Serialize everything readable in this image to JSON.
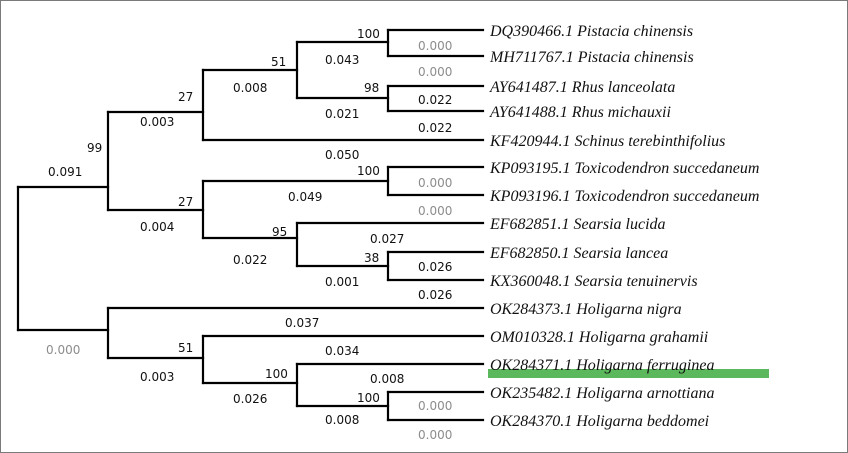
{
  "colors": {
    "line": "#000000",
    "text": "#111111",
    "zero_branch": "#8c8c8c",
    "highlight": "#5cb85c",
    "border": "#7a7a7a"
  },
  "taxa": [
    {
      "accession": "DQ390466.1",
      "species": "Pistacia chinensis"
    },
    {
      "accession": "MH711767.1",
      "species": "Pistacia chinensis"
    },
    {
      "accession": "AY641487.1",
      "species": "Rhus lanceolata"
    },
    {
      "accession": "AY641488.1",
      "species": "Rhus michauxii"
    },
    {
      "accession": "KF420944.1",
      "species": "Schinus terebinthifolius"
    },
    {
      "accession": "KP093195.1",
      "species": "Toxicodendron succedaneum"
    },
    {
      "accession": "KP093196.1",
      "species": "Toxicodendron succedaneum"
    },
    {
      "accession": "EF682851.1",
      "species": "Searsia lucida"
    },
    {
      "accession": "EF682850.1",
      "species": "Searsia lancea"
    },
    {
      "accession": "KX360048.1",
      "species": "Searsia tenuinervis"
    },
    {
      "accession": "OK284373.1",
      "species": "Holigarna nigra"
    },
    {
      "accession": "OM010328.1",
      "species": "Holigarna grahamii"
    },
    {
      "accession": "OK284371.1",
      "species": "Holigarna ferruginea"
    },
    {
      "accession": "OK235482.1",
      "species": "Holigarna arnottiana"
    },
    {
      "accession": "OK284370.1",
      "species": "Holigarna beddomei"
    }
  ],
  "highlighted_taxon": "OK284371.1",
  "bootstrap": {
    "pistacia": "100",
    "pist_rhus": "51",
    "rhus": "98",
    "clade_27a": "27",
    "clade_99": "99",
    "toxico": "100",
    "clade_27b": "27",
    "searsia_95": "95",
    "searsia_38": "38",
    "holig_51": "51",
    "holig_100a": "100",
    "holig_100b": "100"
  },
  "branch_lengths": {
    "b1": "0.000",
    "b2": "0.000",
    "b3": "0.022",
    "b4": "0.022",
    "b5": "0.050",
    "b6": "0.000",
    "b7": "0.000",
    "b8": "0.027",
    "b9": "0.026",
    "b10": "0.026",
    "b11": "0.037",
    "b12": "0.034",
    "b13": "0.008",
    "b14": "0.000",
    "b15": "0.000",
    "i_pistacia": "0.043",
    "i_rhus": "0.021",
    "i_pist_rhus": "0.008",
    "i_27a": "0.003",
    "i_99": "0.091",
    "i_toxico": "0.049",
    "i_s38": "0.001",
    "i_s95": "0.022",
    "i_27b": "0.004",
    "i_arn_bed": "0.008",
    "i_h100": "0.026",
    "i_h51": "0.003",
    "root_lower": "0.000"
  }
}
